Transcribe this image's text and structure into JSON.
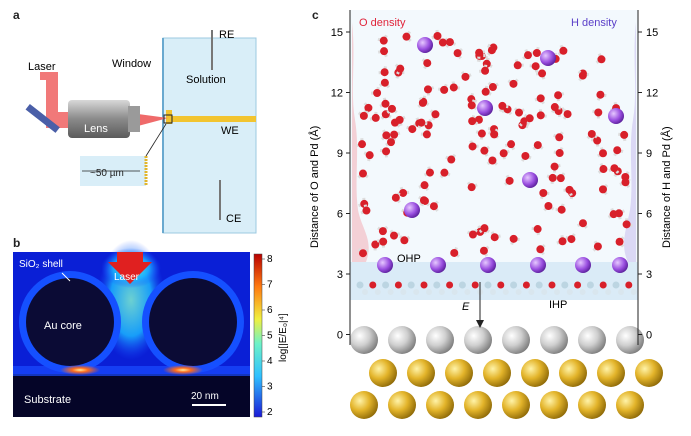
{
  "panels": {
    "a": {
      "label": "a",
      "laser": "Laser",
      "window": "Window",
      "lens": "Lens",
      "solution": "Solution",
      "re": "RE",
      "we": "WE",
      "ce": "CE",
      "scale": "~50 µm"
    },
    "b": {
      "label": "b",
      "shell": "SiO₂ shell",
      "laser": "Laser",
      "core": "Au core",
      "substrate": "Substrate",
      "scalebar": "20 nm",
      "colorbar_label": "log[|E/E₀|⁴]",
      "colorbar_ticks": [
        "8",
        "7",
        "6",
        "5",
        "4",
        "3",
        "2"
      ]
    },
    "c": {
      "label": "c",
      "o_density": "O density",
      "h_density": "H density",
      "left_axis_label": "Distance of O and Pd (Å)",
      "right_axis_label": "Distance of H and Pd (Å)",
      "ticks": [
        "15",
        "12",
        "9",
        "6",
        "3",
        "0"
      ],
      "ohp": "OHP",
      "ihp": "IHP",
      "field": "E"
    }
  },
  "colors": {
    "o_density": "#e0243a",
    "h_density": "#5a3fc8",
    "solution": "#d9eef8",
    "field_bg": "#0a1fd6",
    "gold": "#e2b52b",
    "laser": "#ef6a6a"
  }
}
